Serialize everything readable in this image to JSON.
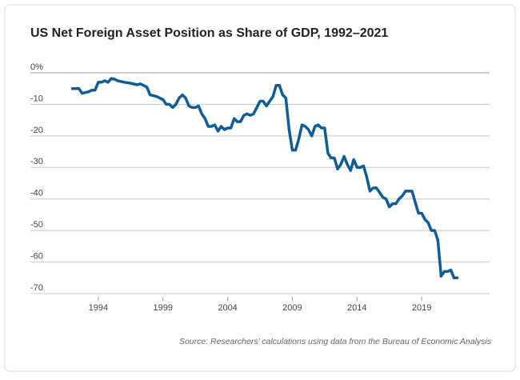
{
  "chart_data": {
    "type": "line",
    "title": "US Net Foreign Asset Position as Share of GDP, 1992–2021",
    "source": "Source: Researchers’ calculations using data from the Bureau of Economic Analysis",
    "color": "#0f5c97",
    "x": [
      1992.0,
      1992.5,
      1992.75,
      1993.25,
      1993.5,
      1993.75,
      1994.0,
      1994.25,
      1994.5,
      1994.75,
      1995.0,
      1995.25,
      1995.5,
      1996.0,
      1996.5,
      1997.0,
      1997.25,
      1997.5,
      1997.75,
      1998.0,
      1998.5,
      1999.0,
      1999.25,
      1999.5,
      1999.75,
      2000.0,
      2000.25,
      2000.5,
      2000.75,
      2001.0,
      2001.25,
      2001.5,
      2001.75,
      2002.0,
      2002.25,
      2002.5,
      2002.75,
      2003.0,
      2003.25,
      2003.5,
      2003.75,
      2004.0,
      2004.25,
      2004.5,
      2004.75,
      2005.0,
      2005.25,
      2005.5,
      2005.75,
      2006.0,
      2006.25,
      2006.5,
      2006.75,
      2007.0,
      2007.25,
      2007.5,
      2007.75,
      2008.0,
      2008.25,
      2008.5,
      2008.75,
      2009.0,
      2009.25,
      2009.5,
      2009.75,
      2010.0,
      2010.25,
      2010.5,
      2010.75,
      2011.0,
      2011.25,
      2011.5,
      2011.75,
      2012.0,
      2012.25,
      2012.5,
      2012.75,
      2013.0,
      2013.25,
      2013.5,
      2013.75,
      2014.0,
      2014.25,
      2014.5,
      2014.75,
      2015.0,
      2015.25,
      2015.5,
      2015.75,
      2016.0,
      2016.25,
      2016.5,
      2016.75,
      2017.0,
      2017.25,
      2017.5,
      2017.75,
      2018.0,
      2018.25,
      2018.5,
      2018.75,
      2019.0,
      2019.25,
      2019.5,
      2019.75,
      2020.0,
      2020.25,
      2020.5,
      2020.75,
      2021.0,
      2021.25,
      2021.5,
      2021.75
    ],
    "values": [
      -5,
      -5,
      -6.5,
      -6,
      -5.5,
      -5.5,
      -3,
      -3,
      -2.5,
      -3,
      -1.8,
      -2,
      -2.5,
      -3,
      -3.3,
      -3.8,
      -3.5,
      -4,
      -4.5,
      -7,
      -7.5,
      -8.5,
      -10,
      -10,
      -11,
      -10,
      -8,
      -7,
      -8,
      -10.5,
      -11,
      -11,
      -10.5,
      -13,
      -14.5,
      -17,
      -17,
      -16.5,
      -18.5,
      -17,
      -18,
      -17.5,
      -17.5,
      -14.5,
      -15.5,
      -15.5,
      -13.5,
      -13,
      -13.5,
      -13,
      -11,
      -9,
      -9,
      -10.5,
      -9,
      -7.5,
      -4,
      -4,
      -7,
      -8,
      -18,
      -24.5,
      -24.5,
      -21,
      -16.5,
      -17,
      -18,
      -20,
      -17,
      -16.5,
      -17.5,
      -17.5,
      -25.5,
      -27,
      -27,
      -30.5,
      -29,
      -26.5,
      -29,
      -31,
      -27.5,
      -30,
      -30,
      -29.5,
      -33,
      -37.5,
      -36.5,
      -36.5,
      -38,
      -39.5,
      -40,
      -42.5,
      -41.5,
      -41.5,
      -40,
      -39,
      -37.5,
      -37.5,
      -37.5,
      -41,
      -44.5,
      -44.5,
      -46.5,
      -47.5,
      -50,
      -50,
      -53,
      -64.5,
      -63,
      -63,
      -62.5,
      -65,
      -65
    ],
    "xlim": [
      1988.75,
      2024.25
    ],
    "xticks": [
      1994,
      1999,
      2004,
      2009,
      2014,
      2019
    ],
    "ylim": [
      -70,
      0
    ],
    "yticks": [
      {
        "value": 0,
        "label": "0%"
      },
      -10,
      -20,
      -30,
      -40,
      -50,
      -60,
      -70
    ],
    "grid": true
  }
}
